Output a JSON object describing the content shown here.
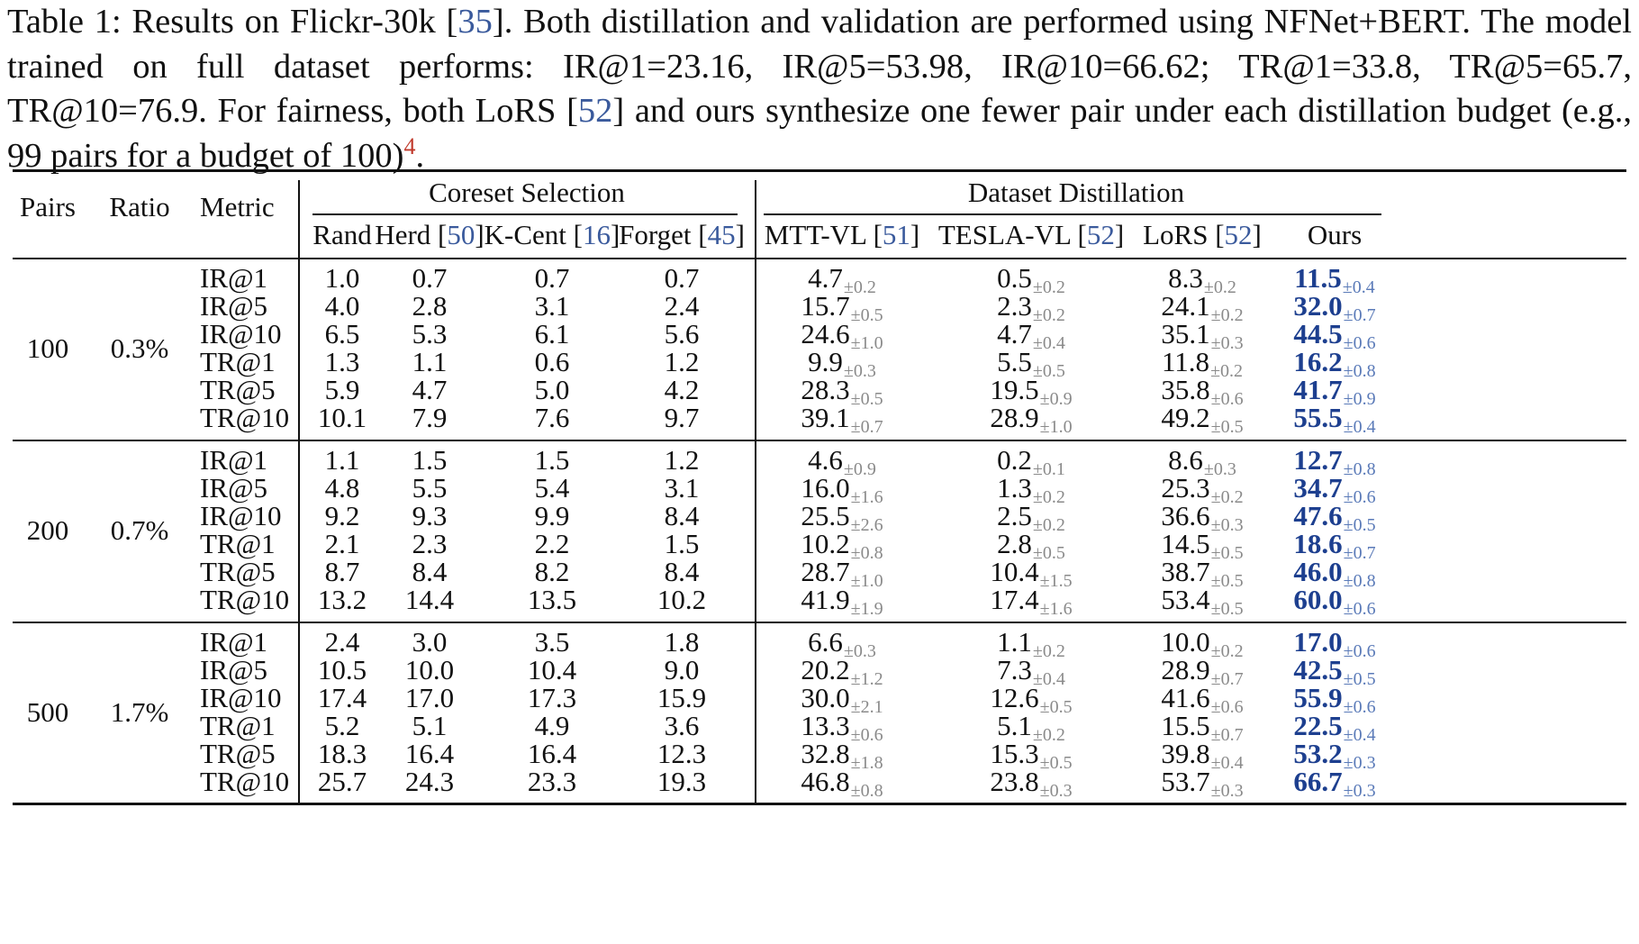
{
  "caption": {
    "prefix": "Table 1:  Results on Flickr-30k [",
    "ref1": "35",
    "mid1": "].  Both distillation and validation are performed using NFNet+BERT. The model trained on full dataset performs: IR@1=23.16, IR@5=53.98, IR@10=66.62; TR@1=33.8, TR@5=65.7, TR@10=76.9. For fairness, both LoRS [",
    "ref2": "52",
    "mid2": "] and ours synthesize one fewer pair under each distillation budget (e.g., 99 pairs for a budget of 100)",
    "footnote": "4",
    "end": "."
  },
  "headers": {
    "pairs": "Pairs",
    "ratio": "Ratio",
    "metric": "Metric",
    "group1": "Coreset Selection",
    "group2": "Dataset Distillation",
    "columns": [
      {
        "name": "Rand",
        "ref": ""
      },
      {
        "name": "Herd ",
        "ref": "50"
      },
      {
        "name": "K-Cent ",
        "ref": "16"
      },
      {
        "name": "Forget ",
        "ref": "45"
      },
      {
        "name": "MTT-VL ",
        "ref": "51"
      },
      {
        "name": "TESLA-VL ",
        "ref": "52"
      },
      {
        "name": "LoRS ",
        "ref": "52"
      },
      {
        "name": "Ours",
        "ref": ""
      }
    ]
  },
  "groups": [
    {
      "pairs": "100",
      "ratio": "0.3%",
      "rows": [
        {
          "metric": "IR@1",
          "coreset": [
            "1.0",
            "0.7",
            "0.7",
            "0.7"
          ],
          "dd": [
            [
              "4.7",
              "±0.2"
            ],
            [
              "0.5",
              "±0.2"
            ],
            [
              "8.3",
              "±0.2"
            ],
            [
              "11.5",
              "±0.4"
            ]
          ]
        },
        {
          "metric": "IR@5",
          "coreset": [
            "4.0",
            "2.8",
            "3.1",
            "2.4"
          ],
          "dd": [
            [
              "15.7",
              "±0.5"
            ],
            [
              "2.3",
              "±0.2"
            ],
            [
              "24.1",
              "±0.2"
            ],
            [
              "32.0",
              "±0.7"
            ]
          ]
        },
        {
          "metric": "IR@10",
          "coreset": [
            "6.5",
            "5.3",
            "6.1",
            "5.6"
          ],
          "dd": [
            [
              "24.6",
              "±1.0"
            ],
            [
              "4.7",
              "±0.4"
            ],
            [
              "35.1",
              "±0.3"
            ],
            [
              "44.5",
              "±0.6"
            ]
          ]
        },
        {
          "metric": "TR@1",
          "coreset": [
            "1.3",
            "1.1",
            "0.6",
            "1.2"
          ],
          "dd": [
            [
              "9.9",
              "±0.3"
            ],
            [
              "5.5",
              "±0.5"
            ],
            [
              "11.8",
              "±0.2"
            ],
            [
              "16.2",
              "±0.8"
            ]
          ]
        },
        {
          "metric": "TR@5",
          "coreset": [
            "5.9",
            "4.7",
            "5.0",
            "4.2"
          ],
          "dd": [
            [
              "28.3",
              "±0.5"
            ],
            [
              "19.5",
              "±0.9"
            ],
            [
              "35.8",
              "±0.6"
            ],
            [
              "41.7",
              "±0.9"
            ]
          ]
        },
        {
          "metric": "TR@10",
          "coreset": [
            "10.1",
            "7.9",
            "7.6",
            "9.7"
          ],
          "dd": [
            [
              "39.1",
              "±0.7"
            ],
            [
              "28.9",
              "±1.0"
            ],
            [
              "49.2",
              "±0.5"
            ],
            [
              "55.5",
              "±0.4"
            ]
          ]
        }
      ]
    },
    {
      "pairs": "200",
      "ratio": "0.7%",
      "rows": [
        {
          "metric": "IR@1",
          "coreset": [
            "1.1",
            "1.5",
            "1.5",
            "1.2"
          ],
          "dd": [
            [
              "4.6",
              "±0.9"
            ],
            [
              "0.2",
              "±0.1"
            ],
            [
              "8.6",
              "±0.3"
            ],
            [
              "12.7",
              "±0.8"
            ]
          ]
        },
        {
          "metric": "IR@5",
          "coreset": [
            "4.8",
            "5.5",
            "5.4",
            "3.1"
          ],
          "dd": [
            [
              "16.0",
              "±1.6"
            ],
            [
              "1.3",
              "±0.2"
            ],
            [
              "25.3",
              "±0.2"
            ],
            [
              "34.7",
              "±0.6"
            ]
          ]
        },
        {
          "metric": "IR@10",
          "coreset": [
            "9.2",
            "9.3",
            "9.9",
            "8.4"
          ],
          "dd": [
            [
              "25.5",
              "±2.6"
            ],
            [
              "2.5",
              "±0.2"
            ],
            [
              "36.6",
              "±0.3"
            ],
            [
              "47.6",
              "±0.5"
            ]
          ]
        },
        {
          "metric": "TR@1",
          "coreset": [
            "2.1",
            "2.3",
            "2.2",
            "1.5"
          ],
          "dd": [
            [
              "10.2",
              "±0.8"
            ],
            [
              "2.8",
              "±0.5"
            ],
            [
              "14.5",
              "±0.5"
            ],
            [
              "18.6",
              "±0.7"
            ]
          ]
        },
        {
          "metric": "TR@5",
          "coreset": [
            "8.7",
            "8.4",
            "8.2",
            "8.4"
          ],
          "dd": [
            [
              "28.7",
              "±1.0"
            ],
            [
              "10.4",
              "±1.5"
            ],
            [
              "38.7",
              "±0.5"
            ],
            [
              "46.0",
              "±0.8"
            ]
          ]
        },
        {
          "metric": "TR@10",
          "coreset": [
            "13.2",
            "14.4",
            "13.5",
            "10.2"
          ],
          "dd": [
            [
              "41.9",
              "±1.9"
            ],
            [
              "17.4",
              "±1.6"
            ],
            [
              "53.4",
              "±0.5"
            ],
            [
              "60.0",
              "±0.6"
            ]
          ]
        }
      ]
    },
    {
      "pairs": "500",
      "ratio": "1.7%",
      "rows": [
        {
          "metric": "IR@1",
          "coreset": [
            "2.4",
            "3.0",
            "3.5",
            "1.8"
          ],
          "dd": [
            [
              "6.6",
              "±0.3"
            ],
            [
              "1.1",
              "±0.2"
            ],
            [
              "10.0",
              "±0.2"
            ],
            [
              "17.0",
              "±0.6"
            ]
          ]
        },
        {
          "metric": "IR@5",
          "coreset": [
            "10.5",
            "10.0",
            "10.4",
            "9.0"
          ],
          "dd": [
            [
              "20.2",
              "±1.2"
            ],
            [
              "7.3",
              "±0.4"
            ],
            [
              "28.9",
              "±0.7"
            ],
            [
              "42.5",
              "±0.5"
            ]
          ]
        },
        {
          "metric": "IR@10",
          "coreset": [
            "17.4",
            "17.0",
            "17.3",
            "15.9"
          ],
          "dd": [
            [
              "30.0",
              "±2.1"
            ],
            [
              "12.6",
              "±0.5"
            ],
            [
              "41.6",
              "±0.6"
            ],
            [
              "55.9",
              "±0.6"
            ]
          ]
        },
        {
          "metric": "TR@1",
          "coreset": [
            "5.2",
            "5.1",
            "4.9",
            "3.6"
          ],
          "dd": [
            [
              "13.3",
              "±0.6"
            ],
            [
              "5.1",
              "±0.2"
            ],
            [
              "15.5",
              "±0.7"
            ],
            [
              "22.5",
              "±0.4"
            ]
          ]
        },
        {
          "metric": "TR@5",
          "coreset": [
            "18.3",
            "16.4",
            "16.4",
            "12.3"
          ],
          "dd": [
            [
              "32.8",
              "±1.8"
            ],
            [
              "15.3",
              "±0.5"
            ],
            [
              "39.8",
              "±0.4"
            ],
            [
              "53.2",
              "±0.3"
            ]
          ]
        },
        {
          "metric": "TR@10",
          "coreset": [
            "25.7",
            "24.3",
            "23.3",
            "19.3"
          ],
          "dd": [
            [
              "46.8",
              "±0.8"
            ],
            [
              "23.8",
              "±0.3"
            ],
            [
              "53.7",
              "±0.3"
            ],
            [
              "66.7",
              "±0.3"
            ]
          ]
        }
      ]
    }
  ]
}
